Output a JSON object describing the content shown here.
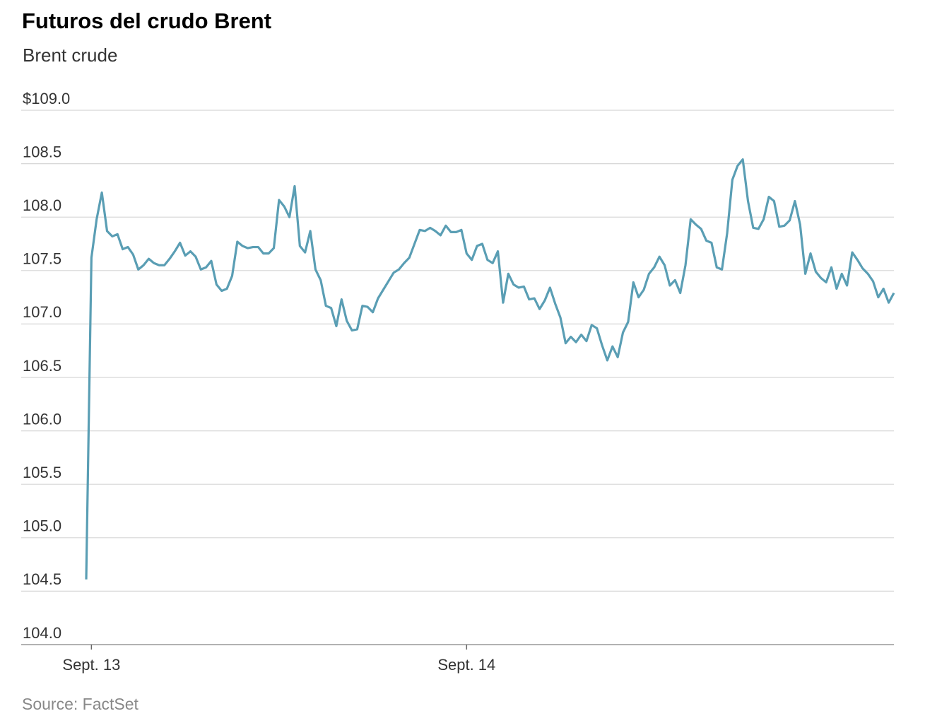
{
  "chart_data": {
    "type": "line",
    "title": "Futuros del crudo Brent",
    "subtitle": "Brent crude",
    "source": "Source: FactSet",
    "color": "#5a9eb4",
    "grid": true,
    "ylim": [
      104,
      109
    ],
    "yticks": [
      {
        "value": 104,
        "label": "104.0"
      },
      104.5,
      {
        "value": 105,
        "label": "105.0"
      },
      105.5,
      {
        "value": 106,
        "label": "106.0"
      },
      106.5,
      {
        "value": 107,
        "label": "107.0"
      },
      107.5,
      {
        "value": 108,
        "label": "108.0"
      },
      108.5,
      {
        "value": 109,
        "label": "$109.0"
      }
    ],
    "categories": [
      null,
      "Sept. 13",
      null,
      null,
      null,
      null,
      null,
      null,
      null,
      null,
      null,
      null,
      null,
      null,
      null,
      null,
      null,
      null,
      null,
      null,
      null,
      null,
      null,
      null,
      null,
      null,
      null,
      null,
      null,
      null,
      null,
      null,
      null,
      null,
      null,
      null,
      null,
      null,
      null,
      null,
      null,
      null,
      null,
      null,
      null,
      null,
      null,
      null,
      null,
      null,
      null,
      null,
      null,
      null,
      null,
      null,
      null,
      null,
      null,
      null,
      null,
      null,
      null,
      null,
      null,
      null,
      null,
      null,
      null,
      null,
      null,
      null,
      null,
      "Sept. 14",
      null,
      null,
      null,
      null,
      null,
      null,
      null,
      null,
      null,
      null,
      null,
      null,
      null,
      null,
      null,
      null,
      null,
      null,
      null,
      null,
      null,
      null,
      null,
      null,
      null,
      null,
      null,
      null,
      null,
      null,
      null,
      null,
      null,
      null,
      null,
      null,
      null,
      null,
      null,
      null,
      null,
      null,
      null,
      null,
      null,
      null,
      null,
      null,
      null,
      null,
      null,
      null,
      null,
      null,
      null,
      null,
      null,
      null,
      null,
      null,
      null,
      null,
      null,
      null,
      null,
      null,
      null,
      null,
      null,
      null,
      null,
      null,
      null,
      null,
      null,
      null,
      null,
      null,
      null,
      null,
      null,
      null
    ],
    "values": [
      104.61,
      107.62,
      107.98,
      108.23,
      107.87,
      107.82,
      107.84,
      107.7,
      107.72,
      107.65,
      107.51,
      107.55,
      107.61,
      107.57,
      107.55,
      107.55,
      107.61,
      107.68,
      107.76,
      107.64,
      107.68,
      107.63,
      107.51,
      107.53,
      107.59,
      107.37,
      107.31,
      107.33,
      107.45,
      107.77,
      107.73,
      107.71,
      107.72,
      107.72,
      107.66,
      107.66,
      107.71,
      108.16,
      108.1,
      108.0,
      108.29,
      107.73,
      107.67,
      107.87,
      107.51,
      107.41,
      107.17,
      107.15,
      106.98,
      107.23,
      107.03,
      106.94,
      106.95,
      107.17,
      107.16,
      107.11,
      107.24,
      107.32,
      107.4,
      107.48,
      107.51,
      107.57,
      107.62,
      107.75,
      107.88,
      107.87,
      107.9,
      107.87,
      107.83,
      107.92,
      107.86,
      107.86,
      107.88,
      107.66,
      107.6,
      107.73,
      107.75,
      107.6,
      107.57,
      107.68,
      107.2,
      107.47,
      107.37,
      107.34,
      107.35,
      107.23,
      107.24,
      107.14,
      107.22,
      107.34,
      107.19,
      107.06,
      106.82,
      106.88,
      106.83,
      106.9,
      106.84,
      106.99,
      106.96,
      106.8,
      106.66,
      106.79,
      106.69,
      106.92,
      107.02,
      107.39,
      107.25,
      107.32,
      107.47,
      107.53,
      107.63,
      107.55,
      107.36,
      107.41,
      107.29,
      107.55,
      107.98,
      107.93,
      107.89,
      107.78,
      107.76,
      107.53,
      107.51,
      107.85,
      108.35,
      108.48,
      108.54,
      108.15,
      107.9,
      107.89,
      107.98,
      108.19,
      108.15,
      107.91,
      107.92,
      107.97,
      108.15,
      107.93,
      107.47,
      107.66,
      107.49,
      107.43,
      107.39,
      107.53,
      107.33,
      107.47,
      107.36,
      107.67,
      107.6,
      107.52,
      107.47,
      107.4,
      107.25,
      107.33,
      107.2,
      107.29
    ]
  }
}
